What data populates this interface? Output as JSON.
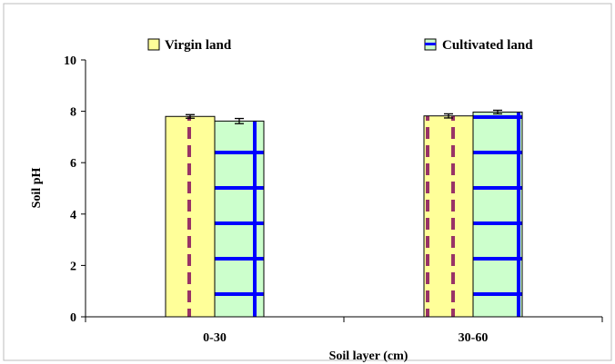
{
  "chart_data": {
    "type": "bar",
    "title": "",
    "xlabel": "Soil layer (cm)",
    "ylabel": "Soil pH",
    "ylim": [
      0,
      10
    ],
    "yticks": [
      0,
      2,
      4,
      6,
      8,
      10
    ],
    "categories": [
      "0-30",
      "30-60"
    ],
    "series": [
      {
        "name": "Virgin land",
        "values": [
          7.8,
          7.82
        ],
        "errors": [
          0.07,
          0.08
        ],
        "fill": "#ffff99",
        "pattern_color": "#993366"
      },
      {
        "name": "Cultivated land",
        "values": [
          7.62,
          7.97
        ],
        "errors": [
          0.1,
          0.07
        ],
        "fill": "#ccffcc",
        "pattern_color": "#0000ff"
      }
    ],
    "legend_position": "top",
    "grid": false
  }
}
